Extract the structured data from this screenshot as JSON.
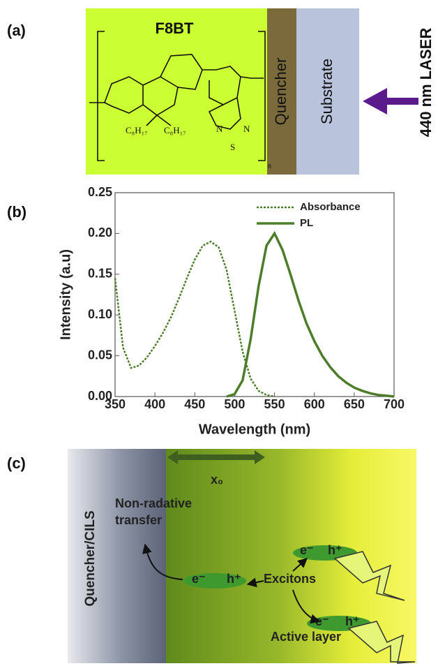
{
  "panel_a": {
    "label": "(a)",
    "layer_title": "F8BT",
    "quencher": "Quencher",
    "substrate": "Substrate",
    "laser": "440 nm LASER",
    "substituent_1": "C₈H₁₇",
    "substituent_2": "C₈H₁₇",
    "atom_n1": "N",
    "atom_s": "S",
    "atom_n2": "N",
    "repeat": "n"
  },
  "panel_b_label": "(b)",
  "chart_data": {
    "type": "line",
    "x_label": "Wavelength (nm)",
    "y_label": "Intensity (a.u)",
    "x": [
      350,
      360,
      370,
      380,
      390,
      400,
      410,
      420,
      430,
      440,
      450,
      460,
      470,
      480,
      490,
      500,
      510,
      520,
      530,
      540,
      550,
      560,
      570,
      580,
      590,
      600,
      610,
      620,
      630,
      640,
      650,
      660,
      670,
      680,
      690,
      700
    ],
    "series": [
      {
        "name": "Absorbance",
        "color": "#4d7c2a",
        "line_style": "dotted",
        "values": [
          0.145,
          0.06,
          0.035,
          0.038,
          0.048,
          0.062,
          0.078,
          0.097,
          0.12,
          0.145,
          0.168,
          0.185,
          0.19,
          0.183,
          0.155,
          0.105,
          0.055,
          0.022,
          0.007,
          0.002,
          0,
          null,
          null,
          null,
          null,
          null,
          null,
          null,
          null,
          null,
          null,
          null,
          null,
          null,
          null,
          null
        ]
      },
      {
        "name": "PL",
        "color": "#4d7c2a",
        "line_style": "solid",
        "values": [
          null,
          null,
          null,
          null,
          null,
          null,
          null,
          null,
          null,
          null,
          null,
          null,
          null,
          null,
          0,
          0.003,
          0.02,
          0.07,
          0.135,
          0.185,
          0.2,
          0.18,
          0.15,
          0.118,
          0.09,
          0.068,
          0.05,
          0.036,
          0.025,
          0.017,
          0.011,
          0.007,
          0.004,
          0.002,
          0.001,
          0
        ]
      }
    ],
    "xlim": [
      350,
      700
    ],
    "xticks": [
      350,
      400,
      450,
      500,
      550,
      600,
      650,
      700
    ],
    "ylim": [
      0,
      0.25
    ],
    "yticks": [
      {
        "value": 0,
        "label": "0.00"
      },
      {
        "value": 0.05,
        "label": "0.05"
      },
      {
        "value": 0.1,
        "label": "0.10"
      },
      {
        "value": 0.15,
        "label": "0.15"
      },
      {
        "value": 0.2,
        "label": "0.20"
      },
      {
        "value": 0.25,
        "label": "0.25"
      }
    ],
    "legend": "upper right",
    "grid": false
  },
  "panel_c": {
    "label": "(c)",
    "distance": "x₀",
    "quencher": "Quencher/CILS",
    "transfer_line1": "Non-radative",
    "transfer_line2": "transfer",
    "electron": "e⁻",
    "hole": "h⁺",
    "excitons": "Excitons",
    "active": "Active layer"
  }
}
